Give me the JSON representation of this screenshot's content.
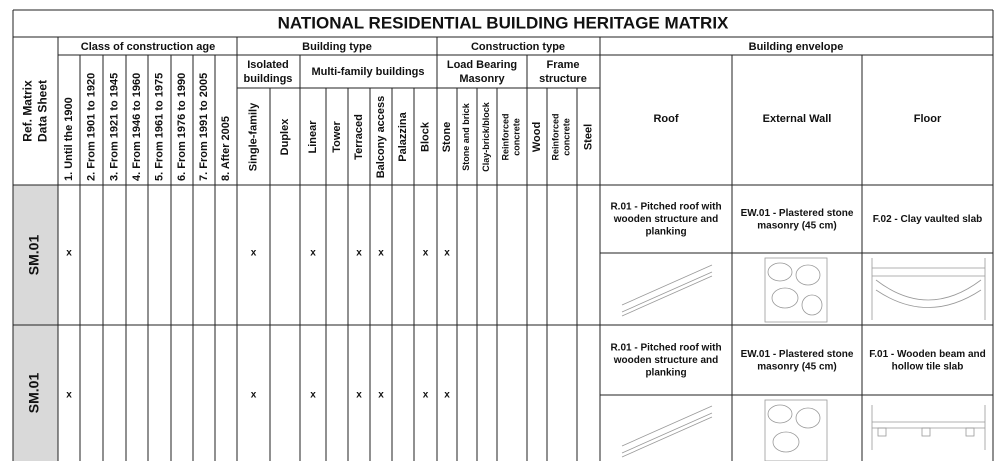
{
  "title": "NATIONAL RESIDENTIAL BUILDING HERITAGE MATRIX",
  "header": {
    "ref": [
      "Ref. Matrix",
      "Data Sheet"
    ],
    "age": {
      "label": "Class of construction age",
      "columns": [
        "1. Until the 1900",
        "2. From 1901 to 1920",
        "3. From 1921 to 1945",
        "4. From 1946 to 1960",
        "5. From 1961 to 1975",
        "6. From 1976 to 1990",
        "7. From 1991 to 2005",
        "8. After 2005"
      ]
    },
    "building_type": {
      "label": "Building type",
      "isolated": {
        "label": [
          "Isolated",
          "buildings"
        ],
        "columns": [
          "Single-family",
          "Duplex"
        ]
      },
      "multi_family": {
        "label": "Multi-family buildings",
        "columns": [
          "Linear",
          "Tower",
          "Terraced",
          "Balcony access",
          "Palazzina",
          "Block"
        ]
      }
    },
    "construction_type": {
      "label": "Construction type",
      "load_bearing": {
        "label": [
          "Load Bearing",
          "Masonry"
        ],
        "columns": [
          [
            "Stone"
          ],
          [
            "Stone and brick"
          ],
          [
            "Clay-brick/block"
          ],
          [
            "Reinforced",
            "concrete"
          ]
        ]
      },
      "frame": {
        "label": [
          "Frame",
          "structure"
        ],
        "columns": [
          [
            "Wood"
          ],
          [
            "Reinforced",
            "concrete"
          ],
          [
            "Steel"
          ]
        ]
      }
    },
    "envelope": {
      "label": "Building envelope",
      "columns": [
        "Roof",
        "External Wall",
        "Floor"
      ]
    }
  },
  "rows": [
    {
      "ref": "SM.01",
      "marks": [
        "x",
        null,
        null,
        null,
        null,
        null,
        null,
        null,
        "x",
        null,
        "x",
        null,
        "x",
        "x",
        null,
        "x",
        "x",
        null,
        null,
        null,
        null,
        null,
        null
      ],
      "envelope": [
        [
          "R.01 - Pitched roof with",
          "wooden structure and",
          "planking"
        ],
        [
          "EW.01 - Plastered stone",
          "masonry (45 cm)"
        ],
        [
          "F.02 - Clay vaulted slab"
        ]
      ]
    },
    {
      "ref": "SM.01",
      "marks": [
        "x",
        null,
        null,
        null,
        null,
        null,
        null,
        null,
        "x",
        null,
        "x",
        null,
        "x",
        "x",
        null,
        "x",
        "x",
        null,
        null,
        null,
        null,
        null,
        null
      ],
      "envelope": [
        [
          "R.01 - Pitched roof with",
          "wooden structure and",
          "planking"
        ],
        [
          "EW.01 - Plastered stone",
          "masonry (45 cm)"
        ],
        [
          "F.01 - Wooden beam and",
          "hollow tile slab"
        ]
      ]
    }
  ]
}
